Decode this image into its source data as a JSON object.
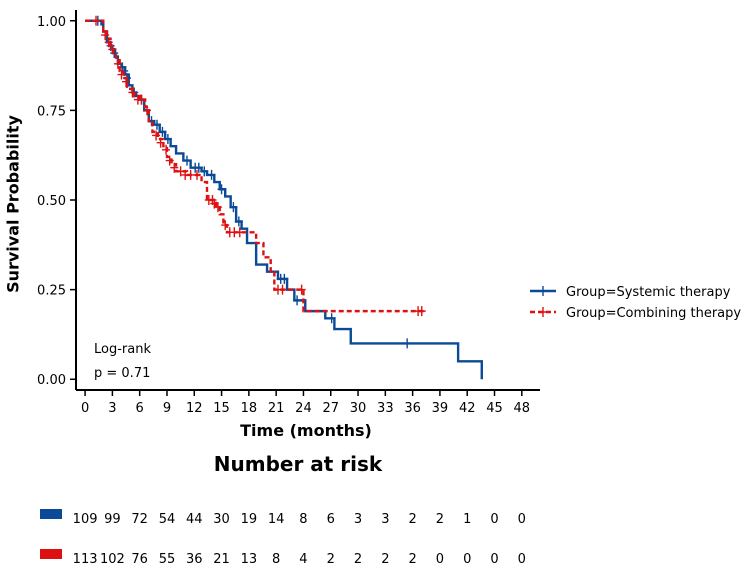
{
  "chart_data": {
    "type": "line",
    "subtype": "kaplan-meier",
    "xlabel": "Time (months)",
    "ylabel": "Survival Probability",
    "xlim": [
      -1,
      50
    ],
    "ylim": [
      -0.03,
      1.03
    ],
    "xticks": [
      0,
      3,
      6,
      9,
      12,
      15,
      18,
      21,
      24,
      27,
      30,
      33,
      36,
      39,
      42,
      45,
      48
    ],
    "yticks": [
      0,
      0.25,
      0.5,
      0.75,
      1.0
    ],
    "ytick_labels": [
      "0.00",
      "0.25",
      "0.50",
      "0.75",
      "1.00"
    ],
    "annotation": {
      "line1": "Log-rank",
      "line2": "p = 0.71"
    },
    "legend_position": "right",
    "series": [
      {
        "name": "Group=Systemic therapy",
        "color": "#0a4a96",
        "dash": "solid",
        "steps": [
          [
            0,
            1.0
          ],
          [
            1.8,
            0.99
          ],
          [
            2,
            0.97
          ],
          [
            2.4,
            0.94
          ],
          [
            2.8,
            0.93
          ],
          [
            3,
            0.92
          ],
          [
            3.3,
            0.9
          ],
          [
            3.6,
            0.88
          ],
          [
            4,
            0.87
          ],
          [
            4.4,
            0.85
          ],
          [
            4.8,
            0.82
          ],
          [
            5.2,
            0.8
          ],
          [
            5.6,
            0.79
          ],
          [
            6,
            0.78
          ],
          [
            6.5,
            0.75
          ],
          [
            7,
            0.72
          ],
          [
            7.6,
            0.71
          ],
          [
            8.2,
            0.69
          ],
          [
            8.8,
            0.67
          ],
          [
            9.4,
            0.65
          ],
          [
            10,
            0.63
          ],
          [
            10.8,
            0.61
          ],
          [
            11.6,
            0.59
          ],
          [
            12.8,
            0.58
          ],
          [
            13.4,
            0.57
          ],
          [
            14.2,
            0.55
          ],
          [
            14.8,
            0.53
          ],
          [
            15.4,
            0.51
          ],
          [
            16,
            0.48
          ],
          [
            16.6,
            0.44
          ],
          [
            17.2,
            0.42
          ],
          [
            17.8,
            0.38
          ],
          [
            18.8,
            0.32
          ],
          [
            20,
            0.3
          ],
          [
            21.2,
            0.28
          ],
          [
            22.2,
            0.25
          ],
          [
            23,
            0.22
          ],
          [
            24.2,
            0.19
          ],
          [
            26.4,
            0.17
          ],
          [
            27.4,
            0.14
          ],
          [
            29.2,
            0.1
          ],
          [
            41,
            0.05
          ],
          [
            43.6,
            0.0
          ]
        ],
        "end": 43.6,
        "censored": [
          [
            1.4,
            1.0
          ],
          [
            2.8,
            0.93
          ],
          [
            3.2,
            0.91
          ],
          [
            4.1,
            0.87
          ],
          [
            4.3,
            0.86
          ],
          [
            4.6,
            0.84
          ],
          [
            5.4,
            0.8
          ],
          [
            6.2,
            0.78
          ],
          [
            7.3,
            0.72
          ],
          [
            7.9,
            0.71
          ],
          [
            8.5,
            0.69
          ],
          [
            9.1,
            0.67
          ],
          [
            11.2,
            0.61
          ],
          [
            12.1,
            0.59
          ],
          [
            12.5,
            0.59
          ],
          [
            13.1,
            0.58
          ],
          [
            13.9,
            0.57
          ],
          [
            15,
            0.53
          ],
          [
            16.3,
            0.48
          ],
          [
            16.9,
            0.44
          ],
          [
            21.5,
            0.28
          ],
          [
            21.9,
            0.28
          ],
          [
            23.3,
            0.22
          ],
          [
            27.1,
            0.17
          ],
          [
            35.4,
            0.1
          ]
        ]
      },
      {
        "name": "Group=Combining therapy",
        "color": "#dd1111",
        "dash": "dashed",
        "steps": [
          [
            0,
            1.0
          ],
          [
            2,
            0.97
          ],
          [
            2.4,
            0.95
          ],
          [
            2.8,
            0.93
          ],
          [
            3.1,
            0.91
          ],
          [
            3.4,
            0.89
          ],
          [
            3.8,
            0.86
          ],
          [
            4.2,
            0.84
          ],
          [
            4.6,
            0.81
          ],
          [
            5.4,
            0.79
          ],
          [
            6,
            0.78
          ],
          [
            6.6,
            0.76
          ],
          [
            7,
            0.72
          ],
          [
            7.4,
            0.69
          ],
          [
            8,
            0.67
          ],
          [
            8.6,
            0.65
          ],
          [
            9,
            0.62
          ],
          [
            9.5,
            0.6
          ],
          [
            10,
            0.58
          ],
          [
            11.2,
            0.57
          ],
          [
            12,
            0.57
          ],
          [
            12.8,
            0.55
          ],
          [
            13.4,
            0.5
          ],
          [
            14.4,
            0.48
          ],
          [
            14.8,
            0.46
          ],
          [
            15.2,
            0.43
          ],
          [
            15.6,
            0.41
          ],
          [
            17.4,
            0.41
          ],
          [
            18.8,
            0.38
          ],
          [
            19.6,
            0.34
          ],
          [
            20.4,
            0.3
          ],
          [
            20.8,
            0.25
          ],
          [
            22.4,
            0.25
          ],
          [
            24,
            0.19
          ]
        ],
        "end": 37.2,
        "censored": [
          [
            1.2,
            1.0
          ],
          [
            2.2,
            0.96
          ],
          [
            2.6,
            0.94
          ],
          [
            3,
            0.92
          ],
          [
            3.6,
            0.88
          ],
          [
            4,
            0.85
          ],
          [
            4.5,
            0.83
          ],
          [
            5.2,
            0.8
          ],
          [
            5.8,
            0.78
          ],
          [
            6.2,
            0.78
          ],
          [
            6.8,
            0.75
          ],
          [
            7.8,
            0.68
          ],
          [
            8.3,
            0.66
          ],
          [
            8.9,
            0.64
          ],
          [
            9.3,
            0.61
          ],
          [
            9.8,
            0.59
          ],
          [
            10.5,
            0.58
          ],
          [
            11,
            0.57
          ],
          [
            11.6,
            0.57
          ],
          [
            12.3,
            0.57
          ],
          [
            13.6,
            0.5
          ],
          [
            14,
            0.5
          ],
          [
            14.2,
            0.49
          ],
          [
            14.6,
            0.48
          ],
          [
            15.4,
            0.43
          ],
          [
            15.9,
            0.41
          ],
          [
            16.4,
            0.41
          ],
          [
            17,
            0.41
          ],
          [
            21.2,
            0.25
          ],
          [
            21.7,
            0.25
          ],
          [
            23.8,
            0.25
          ],
          [
            36.6,
            0.19
          ],
          [
            37,
            0.19
          ]
        ]
      }
    ],
    "risk_table": {
      "title": "Number at risk",
      "times": [
        0,
        3,
        6,
        9,
        12,
        15,
        18,
        21,
        24,
        27,
        30,
        33,
        36,
        39,
        42,
        45,
        48
      ],
      "rows": [
        {
          "color": "#0a4a96",
          "values": [
            "109",
            "99",
            "72",
            "54",
            "44",
            "30",
            "19",
            "14",
            "8",
            "6",
            "3",
            "3",
            "2",
            "2",
            "1",
            "0",
            "0"
          ]
        },
        {
          "color": "#dd1111",
          "values": [
            "113",
            "102",
            "76",
            "55",
            "36",
            "21",
            "13",
            "8",
            "4",
            "2",
            "2",
            "2",
            "2",
            "0",
            "0",
            "0",
            "0"
          ]
        }
      ]
    }
  }
}
